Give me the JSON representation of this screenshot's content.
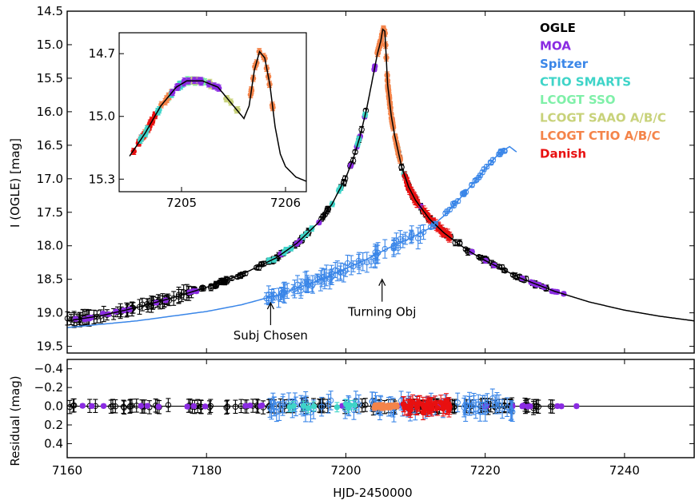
{
  "chart_data": [
    {
      "type": "scatter",
      "panel": "main",
      "xlabel": "HJD-2450000",
      "ylabel": "I (OGLE) [mag]",
      "xlim": [
        7160,
        7250
      ],
      "ylim": [
        19.6,
        14.5
      ],
      "y_inverted": true,
      "x_ticks": [
        "7160",
        "7180",
        "7200",
        "7220",
        "7240"
      ],
      "y_ticks": [
        "14.5",
        "15.0",
        "15.5",
        "16.0",
        "16.5",
        "17.0",
        "17.5",
        "18.0",
        "18.5",
        "19.0",
        "19.5"
      ],
      "legend_placement": "top-right",
      "legend": [
        {
          "name": "OGLE",
          "color": "#000000"
        },
        {
          "name": "MOA",
          "color": "#8a2be2"
        },
        {
          "name": "Spitzer",
          "color": "#3a86e8"
        },
        {
          "name": "CTIO SMARTS",
          "color": "#3fd4c8"
        },
        {
          "name": "LCOGT SSO",
          "color": "#7ff0a8"
        },
        {
          "name": "LCOGT SAAO A/B/C",
          "color": "#c8d27a"
        },
        {
          "name": "LCOGT CTIO A/B/C",
          "color": "#f4844a"
        },
        {
          "name": "Danish",
          "color": "#e81010"
        }
      ],
      "model_ground": {
        "color": "#000000",
        "x": [
          7160,
          7165,
          7170,
          7175,
          7180,
          7185,
          7190,
          7193,
          7196,
          7198,
          7200,
          7201,
          7202,
          7203,
          7204,
          7204.5,
          7205,
          7205.3,
          7205.6,
          7206,
          7206.5,
          7207,
          7208,
          7209,
          7210,
          7212,
          7214,
          7216,
          7218,
          7220,
          7225,
          7230,
          7235,
          7240,
          7245,
          7250
        ],
        "y": [
          19.12,
          19.04,
          18.92,
          18.78,
          18.62,
          18.43,
          18.18,
          17.96,
          17.66,
          17.38,
          16.98,
          16.72,
          16.38,
          15.95,
          15.42,
          15.15,
          14.95,
          14.77,
          14.8,
          15.6,
          16.05,
          16.35,
          16.82,
          17.12,
          17.32,
          17.6,
          17.8,
          17.96,
          18.1,
          18.22,
          18.48,
          18.68,
          18.84,
          18.96,
          19.05,
          19.12
        ]
      },
      "model_spitzer": {
        "color": "#3a86e8",
        "x": [
          7160,
          7170,
          7180,
          7185,
          7190,
          7195,
          7200,
          7203,
          7206,
          7209,
          7212,
          7214,
          7216,
          7218,
          7220,
          7222,
          7223.5,
          7224.5
        ],
        "y": [
          19.22,
          19.12,
          18.98,
          18.88,
          18.74,
          18.56,
          18.34,
          18.2,
          18.04,
          17.9,
          17.74,
          17.56,
          17.34,
          17.1,
          16.86,
          16.62,
          16.52,
          16.6
        ]
      },
      "annotations": [
        {
          "text": "Subj Chosen",
          "x": 7189.2,
          "y_tip": 18.85
        },
        {
          "text": "Turning Obj",
          "x": 7205.2,
          "y_tip": 18.5
        }
      ]
    },
    {
      "type": "scatter",
      "panel": "inset",
      "xlim": [
        7204.4,
        7206.2
      ],
      "ylim": [
        15.36,
        14.6
      ],
      "y_inverted": true,
      "x_ticks": [
        "7205",
        "7206"
      ],
      "y_ticks": [
        "14.7",
        "15.0",
        "15.3"
      ],
      "model": {
        "color": "#000000",
        "x": [
          7204.5,
          7204.65,
          7204.8,
          7204.95,
          7205.05,
          7205.2,
          7205.35,
          7205.5,
          7205.6,
          7205.65,
          7205.7,
          7205.75,
          7205.8,
          7205.85,
          7205.9,
          7205.95,
          7206.0,
          7206.1,
          7206.2
        ],
        "y": [
          15.19,
          15.08,
          14.95,
          14.86,
          14.83,
          14.83,
          14.86,
          14.95,
          15.01,
          14.95,
          14.78,
          14.69,
          14.72,
          14.85,
          15.05,
          15.18,
          15.24,
          15.29,
          15.31
        ]
      }
    },
    {
      "type": "scatter",
      "panel": "residual",
      "xlabel": "HJD-2450000",
      "ylabel": "Residual (mag)",
      "xlim": [
        7160,
        7250
      ],
      "ylim": [
        0.55,
        -0.5
      ],
      "y_inverted": true,
      "x_ticks": [
        "7160",
        "7180",
        "7200",
        "7220",
        "7240"
      ],
      "y_ticks": [
        "−0.4",
        "−0.2",
        "0.0",
        "0.2",
        "0.4"
      ],
      "zero_line": 0
    }
  ]
}
